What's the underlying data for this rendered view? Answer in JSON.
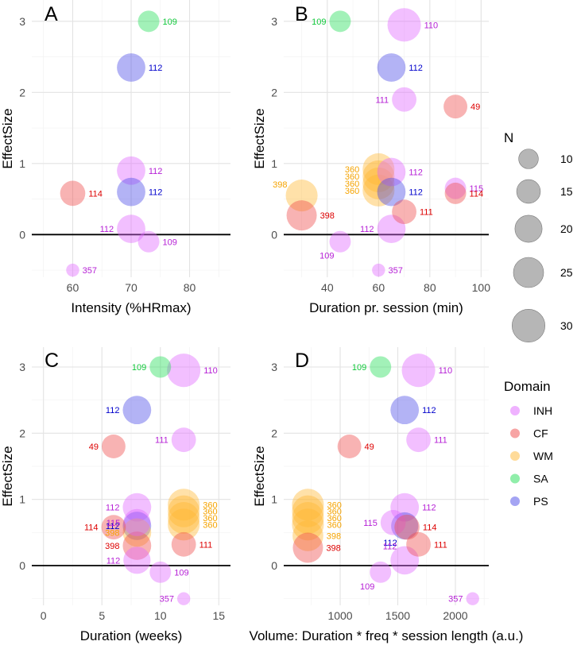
{
  "chart_data": {
    "type": "scatter",
    "variant": "bubble",
    "colors": {
      "INH": "#e066ff",
      "CF": "#ef4a4a",
      "WM": "#ffb733",
      "SA": "#22dd55",
      "PS": "#4a4ae8"
    },
    "label_colors": {
      "INH": "#b620d6",
      "CF": "#dd0000",
      "WM": "#f5a300",
      "SA": "#10c83a",
      "PS": "#0000cc"
    },
    "ylabel": "EffectSize",
    "ylim": [
      -0.6,
      3.3
    ],
    "yticks": [
      0,
      1,
      2,
      3
    ],
    "hline": 0,
    "panels": [
      {
        "letter": "A",
        "xlabel": "Intensity (%HRmax)",
        "xlim": [
          53,
          87
        ],
        "xticks": [
          60,
          70,
          80
        ],
        "points": [
          {
            "x": 73,
            "y": 3.0,
            "n": 12,
            "d": "SA",
            "label": "109"
          },
          {
            "x": 70,
            "y": 2.35,
            "n": 22,
            "d": "PS",
            "label": "112"
          },
          {
            "x": 70,
            "y": 0.9,
            "n": 22,
            "d": "INH",
            "label": "112"
          },
          {
            "x": 70,
            "y": 0.6,
            "n": 22,
            "d": "PS",
            "label": "112"
          },
          {
            "x": 60,
            "y": 0.58,
            "n": 17,
            "d": "CF",
            "label": "114"
          },
          {
            "x": 70,
            "y": 0.08,
            "n": 22,
            "d": "INH",
            "label": "112",
            "side": "left"
          },
          {
            "x": 73,
            "y": -0.1,
            "n": 12,
            "d": "INH",
            "label": "109"
          },
          {
            "x": 60,
            "y": -0.5,
            "n": 4,
            "d": "INH",
            "label": "357"
          }
        ]
      },
      {
        "letter": "B",
        "xlabel": "Duration pr. session (min)",
        "xlim": [
          23,
          103
        ],
        "xticks": [
          40,
          60,
          80,
          100
        ],
        "points": [
          {
            "x": 45,
            "y": 3.0,
            "n": 12,
            "d": "SA",
            "label": "109",
            "side": "left"
          },
          {
            "x": 70,
            "y": 2.95,
            "n": 31,
            "d": "INH",
            "label": "110"
          },
          {
            "x": 65,
            "y": 2.35,
            "n": 22,
            "d": "PS",
            "label": "112"
          },
          {
            "x": 70,
            "y": 1.9,
            "n": 16,
            "d": "INH",
            "label": "111",
            "side": "left"
          },
          {
            "x": 90,
            "y": 1.8,
            "n": 15,
            "d": "CF",
            "label": "49"
          },
          {
            "x": 30,
            "y": 0.55,
            "n": 28,
            "d": "WM",
            "label": "398",
            "side": "up"
          },
          {
            "x": 30,
            "y": 0.27,
            "n": 25,
            "d": "CF",
            "label": "398"
          },
          {
            "x": 60,
            "y": 0.92,
            "n": 28,
            "d": "WM",
            "label": "360",
            "side": "left"
          },
          {
            "x": 60,
            "y": 0.82,
            "n": 28,
            "d": "WM",
            "label": "360",
            "side": "left"
          },
          {
            "x": 60,
            "y": 0.72,
            "n": 28,
            "d": "WM",
            "label": "360",
            "side": "left"
          },
          {
            "x": 60,
            "y": 0.62,
            "n": 28,
            "d": "WM",
            "label": "360",
            "side": "left"
          },
          {
            "x": 65,
            "y": 0.88,
            "n": 22,
            "d": "INH",
            "label": "112"
          },
          {
            "x": 65,
            "y": 0.6,
            "n": 22,
            "d": "PS",
            "label": "112"
          },
          {
            "x": 90,
            "y": 0.65,
            "n": 12,
            "d": "INH",
            "label": "115"
          },
          {
            "x": 90,
            "y": 0.58,
            "n": 12,
            "d": "CF",
            "label": "114"
          },
          {
            "x": 70,
            "y": 0.32,
            "n": 16,
            "d": "CF",
            "label": "111"
          },
          {
            "x": 65,
            "y": 0.08,
            "n": 22,
            "d": "INH",
            "label": "112",
            "side": "left"
          },
          {
            "x": 45,
            "y": -0.1,
            "n": 12,
            "d": "INH",
            "label": "109",
            "side": "downleft"
          },
          {
            "x": 60,
            "y": -0.5,
            "n": 4,
            "d": "INH",
            "label": "357"
          }
        ]
      },
      {
        "letter": "C",
        "xlabel": "Duration (weeks)",
        "xlim": [
          -1,
          16
        ],
        "xticks": [
          0,
          5,
          10,
          15
        ],
        "points": [
          {
            "x": 10,
            "y": 3.0,
            "n": 12,
            "d": "SA",
            "label": "109",
            "side": "left"
          },
          {
            "x": 12,
            "y": 2.95,
            "n": 31,
            "d": "INH",
            "label": "110"
          },
          {
            "x": 8,
            "y": 2.35,
            "n": 22,
            "d": "PS",
            "label": "112",
            "side": "left"
          },
          {
            "x": 12,
            "y": 1.9,
            "n": 16,
            "d": "INH",
            "label": "111",
            "side": "left"
          },
          {
            "x": 6,
            "y": 1.8,
            "n": 15,
            "d": "CF",
            "label": "49",
            "side": "left"
          },
          {
            "x": 8,
            "y": 0.88,
            "n": 22,
            "d": "INH",
            "label": "112",
            "side": "left"
          },
          {
            "x": 12,
            "y": 0.92,
            "n": 28,
            "d": "WM",
            "label": "360"
          },
          {
            "x": 12,
            "y": 0.82,
            "n": 28,
            "d": "WM",
            "label": "360"
          },
          {
            "x": 12,
            "y": 0.72,
            "n": 28,
            "d": "WM",
            "label": "360"
          },
          {
            "x": 12,
            "y": 0.62,
            "n": 28,
            "d": "WM",
            "label": "360"
          },
          {
            "x": 8,
            "y": 0.6,
            "n": 22,
            "d": "PS",
            "label": "112",
            "side": "left"
          },
          {
            "x": 6,
            "y": 0.58,
            "n": 16,
            "d": "CF",
            "label": "114",
            "side": "left"
          },
          {
            "x": 8,
            "y": 0.65,
            "n": 20,
            "d": "INH",
            "label": "115",
            "side": "left"
          },
          {
            "x": 8,
            "y": 0.5,
            "n": 22,
            "d": "WM",
            "label": "398",
            "side": "left"
          },
          {
            "x": 8,
            "y": 0.3,
            "n": 22,
            "d": "CF",
            "label": "398",
            "side": "left"
          },
          {
            "x": 12,
            "y": 0.32,
            "n": 16,
            "d": "CF",
            "label": "111"
          },
          {
            "x": 8,
            "y": 0.08,
            "n": 20,
            "d": "INH",
            "label": "112",
            "side": "left"
          },
          {
            "x": 10,
            "y": -0.1,
            "n": 12,
            "d": "INH",
            "label": "109"
          },
          {
            "x": 12,
            "y": -0.5,
            "n": 4,
            "d": "INH",
            "label": "357",
            "side": "left"
          }
        ]
      },
      {
        "letter": "D",
        "xlabel": "Volume: Duration * freq * session length (a.u.)",
        "xlim": [
          510,
          2290
        ],
        "xticks": [
          1000,
          1500,
          2000
        ],
        "points": [
          {
            "x": 1350,
            "y": 3.0,
            "n": 12,
            "d": "SA",
            "label": "109",
            "side": "left"
          },
          {
            "x": 1680,
            "y": 2.95,
            "n": 31,
            "d": "INH",
            "label": "110"
          },
          {
            "x": 1560,
            "y": 2.35,
            "n": 22,
            "d": "PS",
            "label": "112"
          },
          {
            "x": 1680,
            "y": 1.9,
            "n": 16,
            "d": "INH",
            "label": "111"
          },
          {
            "x": 1080,
            "y": 1.8,
            "n": 15,
            "d": "CF",
            "label": "49"
          },
          {
            "x": 720,
            "y": 0.92,
            "n": 28,
            "d": "WM",
            "label": "360"
          },
          {
            "x": 720,
            "y": 0.82,
            "n": 28,
            "d": "WM",
            "label": "360"
          },
          {
            "x": 720,
            "y": 0.72,
            "n": 28,
            "d": "WM",
            "label": "360"
          },
          {
            "x": 720,
            "y": 0.62,
            "n": 28,
            "d": "WM",
            "label": "360"
          },
          {
            "x": 720,
            "y": 0.45,
            "n": 26,
            "d": "WM",
            "label": "398"
          },
          {
            "x": 720,
            "y": 0.27,
            "n": 25,
            "d": "CF",
            "label": "398"
          },
          {
            "x": 1560,
            "y": 0.88,
            "n": 22,
            "d": "INH",
            "label": "112"
          },
          {
            "x": 1460,
            "y": 0.65,
            "n": 17,
            "d": "INH",
            "label": "115",
            "side": "left"
          },
          {
            "x": 1560,
            "y": 0.6,
            "n": 20,
            "d": "PS",
            "label": "112",
            "side": "downleft"
          },
          {
            "x": 1580,
            "y": 0.58,
            "n": 17,
            "d": "CF",
            "label": "114"
          },
          {
            "x": 1680,
            "y": 0.32,
            "n": 16,
            "d": "CF",
            "label": "111"
          },
          {
            "x": 1560,
            "y": 0.08,
            "n": 22,
            "d": "INH",
            "label": "112",
            "side": "upleft"
          },
          {
            "x": 1350,
            "y": -0.1,
            "n": 12,
            "d": "INH",
            "label": "109",
            "side": "downleft"
          },
          {
            "x": 2150,
            "y": -0.5,
            "n": 4,
            "d": "INH",
            "label": "357",
            "side": "left"
          }
        ]
      }
    ],
    "legend": {
      "size_title": "N",
      "size_values": [
        10,
        15,
        20,
        25,
        30
      ],
      "color_title": "Domain",
      "color_entries": [
        "INH",
        "CF",
        "WM",
        "SA",
        "PS"
      ]
    }
  }
}
